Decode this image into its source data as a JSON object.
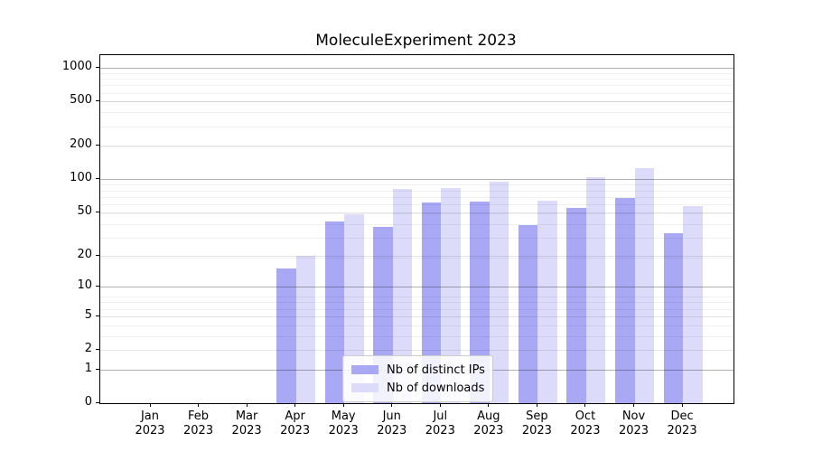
{
  "chart_data": {
    "type": "bar",
    "title": "MoleculeExperiment 2023",
    "x": [
      "Jan",
      "Feb",
      "Mar",
      "Apr",
      "May",
      "Jun",
      "Jul",
      "Aug",
      "Sep",
      "Oct",
      "Nov",
      "Dec"
    ],
    "year": "2023",
    "series": [
      {
        "name": "Nb of distinct IPs",
        "color": "#a8a8f4",
        "values": [
          0,
          0,
          0,
          15,
          41,
          37,
          61,
          63,
          38,
          55,
          67,
          32
        ]
      },
      {
        "name": "Nb of downloads",
        "color": "#dcdcfa",
        "values": [
          0,
          0,
          0,
          20,
          48,
          82,
          83,
          95,
          64,
          105,
          125,
          57
        ]
      }
    ],
    "yticks": [
      0,
      1,
      2,
      5,
      10,
      20,
      50,
      100,
      200,
      500,
      1000
    ],
    "major_gridlines": [
      1,
      10,
      100,
      1000
    ],
    "yscale": "log10(value+1)",
    "ylim": [
      0,
      1300
    ],
    "xlabel": "",
    "ylabel": "",
    "grid": true,
    "legend_position": "lower-center"
  },
  "colors": {
    "background": "#ffffff",
    "axis": "#000000",
    "bar_dark": "#a8a8f4",
    "bar_light": "#dcdcfa"
  }
}
